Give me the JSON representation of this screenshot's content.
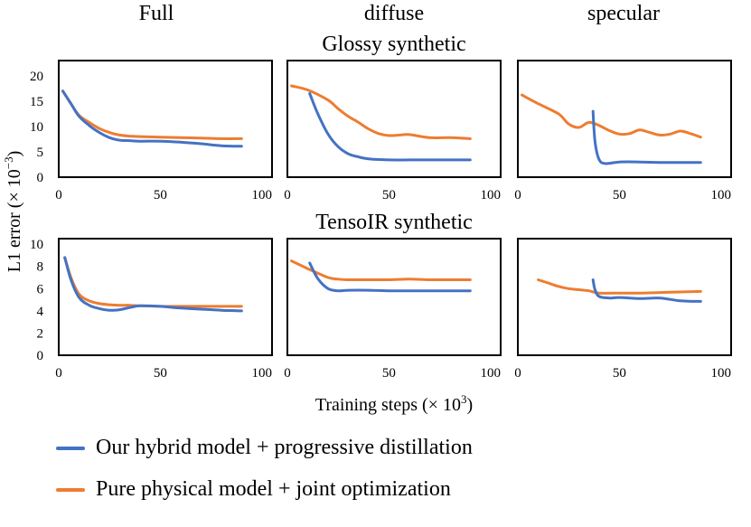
{
  "colors": {
    "hybrid": "#4472c4",
    "physical": "#ed7d31"
  },
  "chart_data": {
    "type": "line",
    "column_titles": [
      "Full",
      "diffuse",
      "specular"
    ],
    "ylabel_main": "L1 error (× 10",
    "ylabel_exp": "−3",
    "ylabel_tail": ")",
    "xlabel_main": "Training steps (× 10",
    "xlabel_exp": "3",
    "xlabel_tail": ")",
    "legend": {
      "hybrid": "Our hybrid model + progressive distillation",
      "physical": "Pure physical model + joint optimization"
    },
    "rows": [
      {
        "title": "Glossy synthetic",
        "xlim": [
          0,
          105
        ],
        "ylim": [
          0,
          23
        ],
        "xticks": [
          "0",
          "50",
          "100"
        ],
        "yticks": [
          "0",
          "5",
          "10",
          "15",
          "20"
        ],
        "panels": [
          {
            "column": "Full",
            "series": [
              {
                "name": "hybrid",
                "x": [
                  2,
                  6,
                  10,
                  15,
                  20,
                  25,
                  30,
                  35,
                  40,
                  50,
                  60,
                  70,
                  80,
                  90
                ],
                "y": [
                  17,
                  14.5,
                  12,
                  10.2,
                  8.8,
                  7.8,
                  7.3,
                  7.2,
                  7.1,
                  7.1,
                  6.9,
                  6.6,
                  6.2,
                  6.1
                ]
              },
              {
                "name": "physical",
                "x": [
                  2,
                  6,
                  10,
                  15,
                  20,
                  25,
                  30,
                  35,
                  40,
                  50,
                  60,
                  70,
                  80,
                  90
                ],
                "y": [
                  17,
                  14.5,
                  12.2,
                  10.8,
                  9.6,
                  8.8,
                  8.3,
                  8.1,
                  8.0,
                  7.9,
                  7.8,
                  7.7,
                  7.6,
                  7.6
                ]
              }
            ]
          },
          {
            "column": "diffuse",
            "series": [
              {
                "name": "hybrid",
                "x": [
                  11,
                  15,
                  20,
                  25,
                  30,
                  35,
                  40,
                  50,
                  60,
                  70,
                  80,
                  90
                ],
                "y": [
                  16.5,
                  12.5,
                  8.5,
                  6,
                  4.6,
                  4,
                  3.6,
                  3.4,
                  3.4,
                  3.4,
                  3.4,
                  3.4
                ]
              },
              {
                "name": "physical",
                "x": [
                  2,
                  10,
                  20,
                  25,
                  30,
                  35,
                  40,
                  45,
                  50,
                  55,
                  60,
                  70,
                  80,
                  90
                ],
                "y": [
                  18,
                  17.2,
                  15.2,
                  13.5,
                  12,
                  10.8,
                  9.5,
                  8.6,
                  8.2,
                  8.3,
                  8.4,
                  7.8,
                  7.8,
                  7.6
                ]
              }
            ]
          },
          {
            "column": "specular",
            "series": [
              {
                "name": "hybrid",
                "x": [
                  37,
                  38,
                  40,
                  43,
                  50,
                  60,
                  70,
                  80,
                  90
                ],
                "y": [
                  13,
                  7,
                  3.5,
                  2.7,
                  3,
                  3,
                  2.9,
                  2.9,
                  2.9
                ]
              },
              {
                "name": "physical",
                "x": [
                  2,
                  10,
                  20,
                  25,
                  30,
                  35,
                  40,
                  45,
                  50,
                  55,
                  60,
                  65,
                  70,
                  75,
                  80,
                  85,
                  90
                ],
                "y": [
                  16.2,
                  14.5,
                  12.5,
                  10.5,
                  9.8,
                  10.8,
                  10.2,
                  9.2,
                  8.5,
                  8.6,
                  9.3,
                  8.8,
                  8.3,
                  8.5,
                  9.1,
                  8.6,
                  7.9
                ]
              }
            ]
          }
        ]
      },
      {
        "title": "TensoIR synthetic",
        "xlim": [
          0,
          105
        ],
        "ylim": [
          0,
          10.5
        ],
        "xticks": [
          "0",
          "50",
          "100"
        ],
        "yticks": [
          "0",
          "2",
          "4",
          "6",
          "8",
          "10"
        ],
        "panels": [
          {
            "column": "Full",
            "series": [
              {
                "name": "hybrid",
                "x": [
                  3,
                  6,
                  10,
                  15,
                  20,
                  25,
                  30,
                  35,
                  40,
                  50,
                  60,
                  70,
                  80,
                  90
                ],
                "y": [
                  8.8,
                  6.8,
                  5.2,
                  4.5,
                  4.2,
                  4.05,
                  4.1,
                  4.3,
                  4.45,
                  4.4,
                  4.25,
                  4.15,
                  4.05,
                  4.0
                ]
              },
              {
                "name": "physical",
                "x": [
                  3,
                  6,
                  10,
                  15,
                  20,
                  25,
                  30,
                  35,
                  40,
                  50,
                  60,
                  70,
                  80,
                  90
                ],
                "y": [
                  8.8,
                  7,
                  5.5,
                  4.9,
                  4.65,
                  4.55,
                  4.5,
                  4.5,
                  4.45,
                  4.4,
                  4.4,
                  4.4,
                  4.4,
                  4.4
                ]
              }
            ]
          },
          {
            "column": "diffuse",
            "series": [
              {
                "name": "hybrid",
                "x": [
                  11,
                  15,
                  20,
                  25,
                  30,
                  40,
                  50,
                  60,
                  70,
                  80,
                  90
                ],
                "y": [
                  8.3,
                  6.9,
                  6.0,
                  5.8,
                  5.85,
                  5.85,
                  5.8,
                  5.8,
                  5.8,
                  5.8,
                  5.8
                ]
              },
              {
                "name": "physical",
                "x": [
                  2,
                  10,
                  20,
                  25,
                  30,
                  40,
                  50,
                  60,
                  70,
                  80,
                  90
                ],
                "y": [
                  8.5,
                  7.8,
                  7.0,
                  6.85,
                  6.8,
                  6.8,
                  6.8,
                  6.85,
                  6.8,
                  6.8,
                  6.8
                ]
              }
            ]
          },
          {
            "column": "specular",
            "series": [
              {
                "name": "hybrid",
                "x": [
                  37,
                  38,
                  40,
                  45,
                  50,
                  60,
                  70,
                  80,
                  90
                ],
                "y": [
                  6.8,
                  5.9,
                  5.3,
                  5.15,
                  5.2,
                  5.1,
                  5.15,
                  4.9,
                  4.85
                ]
              },
              {
                "name": "physical",
                "x": [
                  10,
                  15,
                  20,
                  25,
                  30,
                  35,
                  40,
                  50,
                  60,
                  70,
                  80,
                  90
                ],
                "y": [
                  6.8,
                  6.5,
                  6.2,
                  6.0,
                  5.9,
                  5.8,
                  5.6,
                  5.6,
                  5.6,
                  5.65,
                  5.7,
                  5.75
                ]
              }
            ]
          }
        ]
      }
    ]
  }
}
